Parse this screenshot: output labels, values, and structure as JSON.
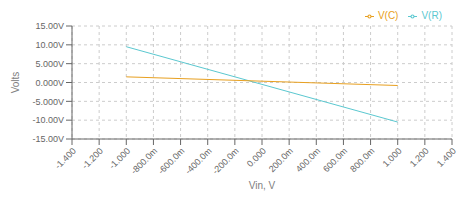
{
  "chart_data": {
    "type": "line",
    "xlabel": "Vin, V",
    "ylabel": "Volts",
    "x": [
      -1.0,
      1.0
    ],
    "series": [
      {
        "name": "V(R)",
        "color": "#5BC8D0",
        "values": [
          9.5,
          -10.5
        ]
      },
      {
        "name": "V(C)",
        "color": "#E8A020",
        "values": [
          1.5,
          -0.8
        ]
      }
    ],
    "xlim": [
      -1.4,
      1.4
    ],
    "ylim": [
      -15,
      15
    ],
    "xticks": [
      {
        "value": -1.4,
        "label": "-1.400"
      },
      {
        "value": -1.2,
        "label": "-1.200"
      },
      {
        "value": -1.0,
        "label": "-1.000"
      },
      {
        "value": -0.8,
        "label": "-800.0m"
      },
      {
        "value": -0.6,
        "label": "-600.0m"
      },
      {
        "value": -0.4,
        "label": "-400.0m"
      },
      {
        "value": -0.2,
        "label": "-200.0m"
      },
      {
        "value": 0.0,
        "label": "0.000"
      },
      {
        "value": 0.2,
        "label": "200.0m"
      },
      {
        "value": 0.4,
        "label": "400.0m"
      },
      {
        "value": 0.6,
        "label": "600.0m"
      },
      {
        "value": 0.8,
        "label": "800.0m"
      },
      {
        "value": 1.0,
        "label": "1.000"
      },
      {
        "value": 1.2,
        "label": "1.200"
      },
      {
        "value": 1.4,
        "label": "1.400"
      }
    ],
    "yticks": [
      {
        "value": -15,
        "label": "-15.00V"
      },
      {
        "value": -10,
        "label": "-10.00V"
      },
      {
        "value": -5,
        "label": "-5.000V"
      },
      {
        "value": 0,
        "label": "0.000V"
      },
      {
        "value": 5,
        "label": "5.000V"
      },
      {
        "value": 10,
        "label": "10.00V"
      },
      {
        "value": 15,
        "label": "15.00V"
      }
    ],
    "grid": true,
    "legend": "top-right"
  }
}
